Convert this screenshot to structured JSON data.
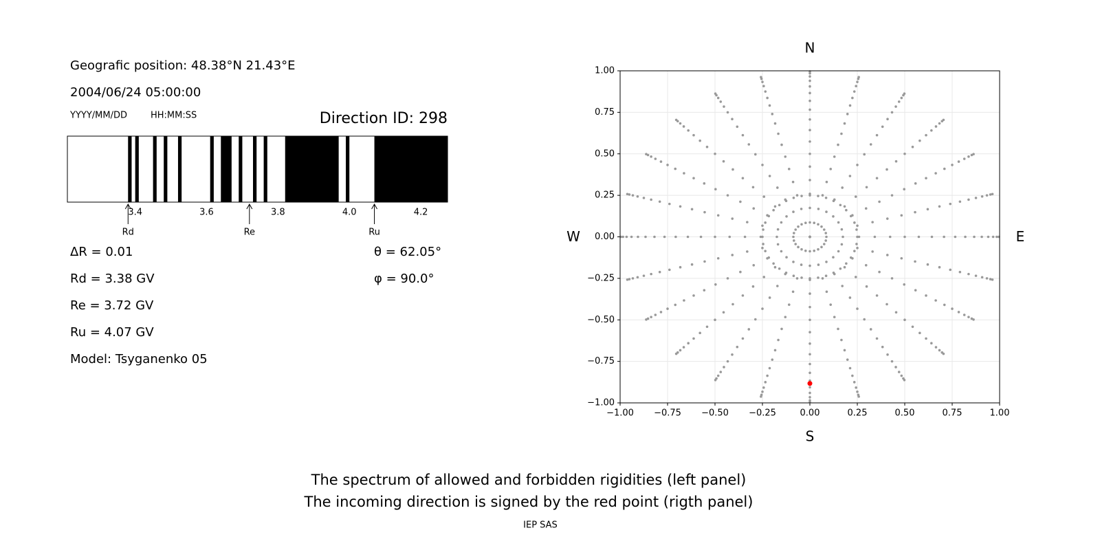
{
  "info": {
    "position": "Geografic position: 48.38°N 21.43°E",
    "datetime": "2004/06/24 05:00:00",
    "date_format": "YYYY/MM/DD",
    "time_format": "HH:MM:SS",
    "direction_id": "Direction ID: 298",
    "delta_r": "ΔR = 0.01",
    "theta": "θ = 62.05°",
    "phi": "φ = 90.0°",
    "rd": "Rd = 3.38 GV",
    "re": "Re = 3.72 GV",
    "ru": "Ru = 4.07 GV",
    "model": "Model: Tsyganenko 05"
  },
  "chart_data": [
    {
      "type": "spectrum",
      "xlim": [
        3.21,
        4.275
      ],
      "xticks": [
        3.4,
        3.6,
        3.8,
        {
          "value": 4,
          "label": "4.0"
        },
        4.2
      ],
      "color": "#000000",
      "forbidden": [
        [
          3.38,
          3.39
        ],
        [
          3.4,
          3.41
        ],
        [
          3.45,
          3.46
        ],
        [
          3.48,
          3.49
        ],
        [
          3.52,
          3.53
        ],
        [
          3.61,
          3.62
        ],
        [
          3.64,
          3.67
        ],
        [
          3.69,
          3.7
        ],
        [
          3.73,
          3.74
        ],
        [
          3.76,
          3.77
        ],
        [
          3.82,
          3.97
        ],
        [
          3.99,
          4.0
        ],
        [
          4.07,
          4.275
        ]
      ],
      "markers": [
        {
          "label": "Rd",
          "value": 3.38
        },
        {
          "label": "Re",
          "value": 3.72
        },
        {
          "label": "Ru",
          "value": 4.07
        }
      ]
    },
    {
      "type": "polar-scatter",
      "xlim": [
        -1,
        1
      ],
      "ylim": [
        -1,
        1
      ],
      "grid": true,
      "color": "#999999",
      "xticks": [
        {
          "value": -1,
          "label": "−1.00"
        },
        {
          "value": -0.75,
          "label": "−0.75"
        },
        {
          "value": -0.5,
          "label": "−0.50"
        },
        {
          "value": -0.25,
          "label": "−0.25"
        },
        {
          "value": 0,
          "label": "0.00"
        },
        {
          "value": 0.25,
          "label": "0.25"
        },
        {
          "value": 0.5,
          "label": "0.50"
        },
        {
          "value": 0.75,
          "label": "0.75"
        },
        {
          "value": 1,
          "label": "1.00"
        }
      ],
      "yticks": [
        {
          "value": -1,
          "label": "−1.00"
        },
        {
          "value": -0.75,
          "label": "−0.75"
        },
        {
          "value": -0.5,
          "label": "−0.50"
        },
        {
          "value": -0.25,
          "label": "−0.25"
        },
        {
          "value": 0,
          "label": "0.00"
        },
        {
          "value": 0.25,
          "label": "0.25"
        },
        {
          "value": 0.5,
          "label": "0.50"
        },
        {
          "value": 0.75,
          "label": "0.75"
        },
        {
          "value": 1,
          "label": "1.00"
        }
      ],
      "directions": {
        "north": "N",
        "south": "S",
        "east": "E",
        "west": "W"
      },
      "spokes": {
        "azimuths": [
          0,
          15,
          30,
          45,
          60,
          75,
          90,
          105,
          120,
          135,
          150,
          165,
          180,
          195,
          210,
          225,
          240,
          255,
          270,
          285,
          300,
          315,
          330,
          345
        ],
        "radii": [
          0,
          0.087,
          0.174,
          0.259,
          0.342,
          0.423,
          0.5,
          0.574,
          0.643,
          0.707,
          0.766,
          0.819,
          0.866,
          0.906,
          0.94,
          0.966,
          0.985,
          0.996
        ]
      },
      "ring": {
        "radius": 0.25,
        "azimuths": [
          0,
          10,
          20,
          30,
          40,
          50,
          60,
          70,
          80,
          90,
          100,
          110,
          120,
          130,
          140,
          150,
          160,
          170,
          180,
          190,
          200,
          210,
          220,
          230,
          240,
          250,
          260,
          270,
          280,
          290,
          300,
          310,
          320,
          330,
          340,
          350
        ]
      },
      "highlight": {
        "x": 0,
        "y": -0.883,
        "color": "#ff0000"
      }
    }
  ],
  "caption": [
    "The spectrum of allowed and forbidden rigidities (left panel)",
    "The incoming direction is signed by the red point (rigth panel)"
  ],
  "credit": "IEP SAS"
}
